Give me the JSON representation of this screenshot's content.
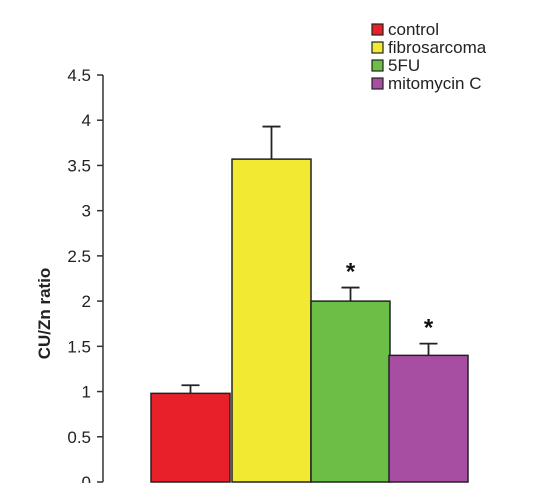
{
  "chart_data": {
    "type": "bar",
    "title": "",
    "xlabel": "",
    "ylabel": "CU/Zn ratio",
    "ylim": [
      0,
      4.5
    ],
    "yticks": [
      "0",
      "0.5",
      "1",
      "1.5",
      "2",
      "2.5",
      "3",
      "3.5",
      "4",
      "4.5"
    ],
    "grid": false,
    "legend_position": "top-right",
    "categories": [
      "control",
      "fibrosarcoma",
      "5FU",
      "mitomycin C"
    ],
    "values": [
      0.98,
      3.57,
      2.0,
      1.4
    ],
    "error": [
      0.09,
      0.36,
      0.15,
      0.13
    ],
    "significance": [
      "",
      "",
      "*",
      "*"
    ],
    "colors": [
      "#e8202a",
      "#f2ea32",
      "#6cbf46",
      "#a74ea3"
    ]
  }
}
